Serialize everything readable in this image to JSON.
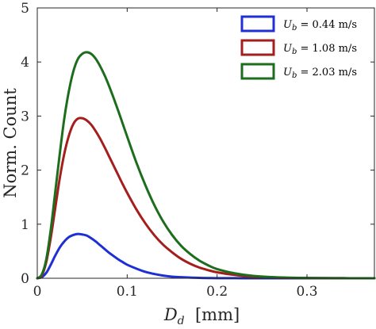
{
  "chart_data": {
    "type": "line",
    "title": "",
    "xlabel": {
      "var": "D",
      "sub": "d",
      "unit": "[mm]"
    },
    "ylabel": "Norm. Count",
    "xlim": [
      0,
      0.375
    ],
    "ylim": [
      0,
      5
    ],
    "xticks": [
      0,
      0.1,
      0.2,
      0.3
    ],
    "xtick_labels": [
      "0",
      "0.1",
      "0.2",
      "0.3"
    ],
    "yticks": [
      0,
      1,
      2,
      3,
      4,
      5
    ],
    "ytick_labels": [
      "0",
      "1",
      "2",
      "3",
      "4",
      "5"
    ],
    "grid": false,
    "legend_position": "top-right",
    "x": [
      0,
      0.005,
      0.01,
      0.015,
      0.02,
      0.025,
      0.03,
      0.035,
      0.04,
      0.045,
      0.05,
      0.055,
      0.06,
      0.065,
      0.07,
      0.075,
      0.08,
      0.085,
      0.09,
      0.095,
      0.1,
      0.11,
      0.12,
      0.13,
      0.14,
      0.15,
      0.16,
      0.17,
      0.18,
      0.19,
      0.2,
      0.22,
      0.24,
      0.26,
      0.28,
      0.3,
      0.32,
      0.34,
      0.36,
      0.375
    ],
    "series": [
      {
        "name": "U_b = 0.44 m/s",
        "label_parts": {
          "var": "U",
          "sub": "b",
          "value": " = 0.44",
          "unit": "m/s"
        },
        "color": "#1f2fd6",
        "values": [
          0.0,
          0.02,
          0.1,
          0.25,
          0.42,
          0.57,
          0.68,
          0.76,
          0.8,
          0.82,
          0.81,
          0.79,
          0.74,
          0.68,
          0.61,
          0.54,
          0.47,
          0.41,
          0.35,
          0.3,
          0.25,
          0.18,
          0.12,
          0.08,
          0.05,
          0.03,
          0.02,
          0.012,
          0.007,
          0.004,
          0.002,
          0.001,
          0.0,
          0.0,
          0.0,
          0.0,
          0.0,
          0.0,
          0.0,
          0.0
        ]
      },
      {
        "name": "U_b = 1.08 m/s",
        "label_parts": {
          "var": "U",
          "sub": "b",
          "value": " = 1.08",
          "unit": "m/s"
        },
        "color": "#a51e1e",
        "values": [
          0.0,
          0.05,
          0.3,
          0.75,
          1.3,
          1.85,
          2.3,
          2.63,
          2.85,
          2.95,
          2.96,
          2.92,
          2.84,
          2.72,
          2.58,
          2.42,
          2.25,
          2.08,
          1.91,
          1.74,
          1.58,
          1.28,
          1.02,
          0.8,
          0.62,
          0.48,
          0.36,
          0.27,
          0.2,
          0.15,
          0.11,
          0.06,
          0.03,
          0.015,
          0.008,
          0.004,
          0.002,
          0.001,
          0.0,
          0.0
        ]
      },
      {
        "name": "U_b = 2.03 m/s",
        "label_parts": {
          "var": "U",
          "sub": "b",
          "value": " = 2.03",
          "unit": "m/s"
        },
        "color": "#1c6d1c",
        "values": [
          0.0,
          0.07,
          0.35,
          0.9,
          1.6,
          2.3,
          2.95,
          3.45,
          3.82,
          4.05,
          4.15,
          4.18,
          4.15,
          4.06,
          3.92,
          3.75,
          3.55,
          3.33,
          3.1,
          2.86,
          2.62,
          2.15,
          1.73,
          1.36,
          1.05,
          0.8,
          0.6,
          0.45,
          0.33,
          0.24,
          0.17,
          0.09,
          0.045,
          0.022,
          0.011,
          0.005,
          0.003,
          0.001,
          0.0,
          0.0
        ]
      }
    ]
  }
}
